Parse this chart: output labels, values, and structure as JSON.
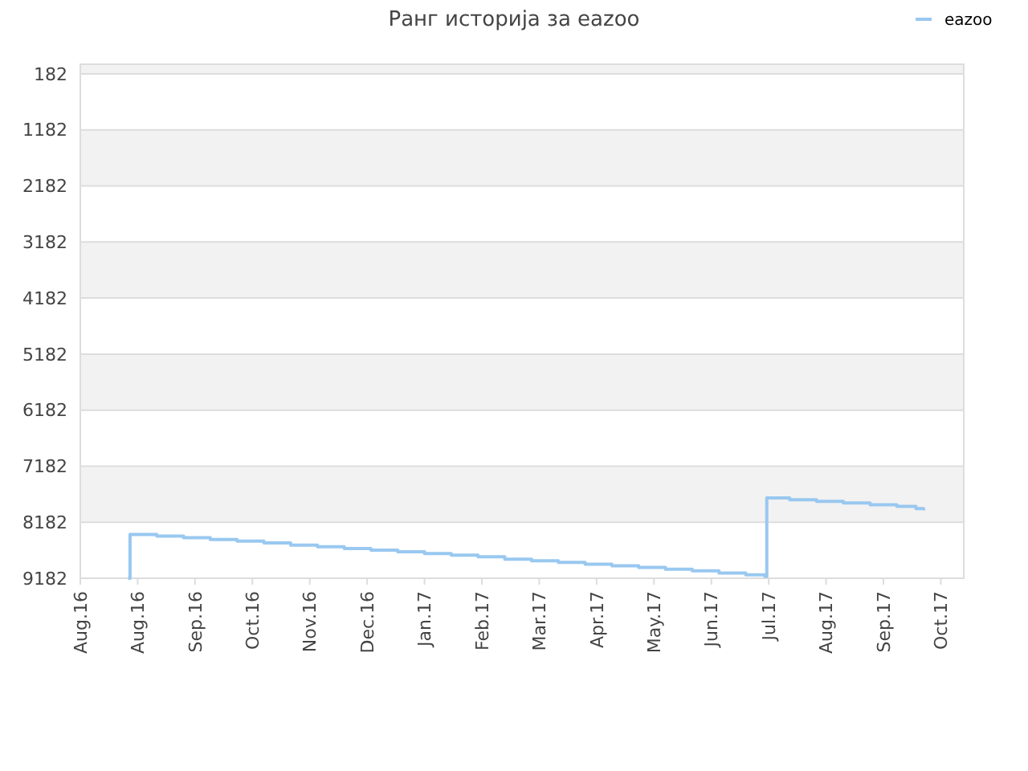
{
  "chart_data": {
    "type": "step",
    "title": "Ранг историја за eazoo",
    "legend": "top right",
    "grid": "y",
    "marker": "none",
    "line_style": "solid",
    "xlim": [
      "2016-08-01",
      "2017-11-06"
    ],
    "xticks": [
      {
        "value": "2016-08-01",
        "label": "Aug.16"
      },
      {
        "value": "2016-08-31",
        "label": "Aug.16"
      },
      {
        "value": "2016-09-30",
        "label": "Sep.16"
      },
      {
        "value": "2016-10-30",
        "label": "Oct.16"
      },
      {
        "value": "2016-11-29",
        "label": "Nov.16"
      },
      {
        "value": "2016-12-29",
        "label": "Dec.16"
      },
      {
        "value": "2017-01-28",
        "label": "Jan.17"
      },
      {
        "value": "2017-02-27",
        "label": "Feb.17"
      },
      {
        "value": "2017-03-29",
        "label": "Mar.17"
      },
      {
        "value": "2017-04-28",
        "label": "Apr.17"
      },
      {
        "value": "2017-05-28",
        "label": "May.17"
      },
      {
        "value": "2017-06-27",
        "label": "Jun.17"
      },
      {
        "value": "2017-07-27",
        "label": "Jul.17"
      },
      {
        "value": "2017-08-26",
        "label": "Aug.17"
      },
      {
        "value": "2017-09-25",
        "label": "Sep.17"
      },
      {
        "value": "2017-10-25",
        "label": "Oct.17"
      }
    ],
    "ylim": [
      9182,
      10
    ],
    "yticks": [
      182,
      1182,
      2182,
      3182,
      4182,
      5182,
      6182,
      7182,
      8182,
      9182
    ],
    "series": [
      {
        "name": "eazoo",
        "color": "#99c8f0",
        "x": [
          "2016-08-26",
          "2016-08-27",
          "2016-09-10",
          "2016-09-24",
          "2016-10-08",
          "2016-10-22",
          "2016-11-05",
          "2016-11-19",
          "2016-12-03",
          "2016-12-17",
          "2016-12-31",
          "2017-01-14",
          "2017-01-28",
          "2017-02-11",
          "2017-02-25",
          "2017-03-11",
          "2017-03-25",
          "2017-04-08",
          "2017-04-22",
          "2017-05-06",
          "2017-05-20",
          "2017-06-03",
          "2017-06-17",
          "2017-07-01",
          "2017-07-15",
          "2017-07-25",
          "2017-07-26",
          "2017-08-07",
          "2017-08-21",
          "2017-09-04",
          "2017-09-18",
          "2017-10-02",
          "2017-10-12",
          "2017-10-16"
        ],
        "values": [
          9182,
          8400,
          8430,
          8460,
          8490,
          8520,
          8550,
          8590,
          8620,
          8650,
          8680,
          8710,
          8740,
          8770,
          8800,
          8840,
          8870,
          8900,
          8930,
          8960,
          8990,
          9020,
          9050,
          9090,
          9120,
          9150,
          7750,
          7780,
          7810,
          7840,
          7870,
          7900,
          7940,
          7970
        ]
      }
    ]
  }
}
